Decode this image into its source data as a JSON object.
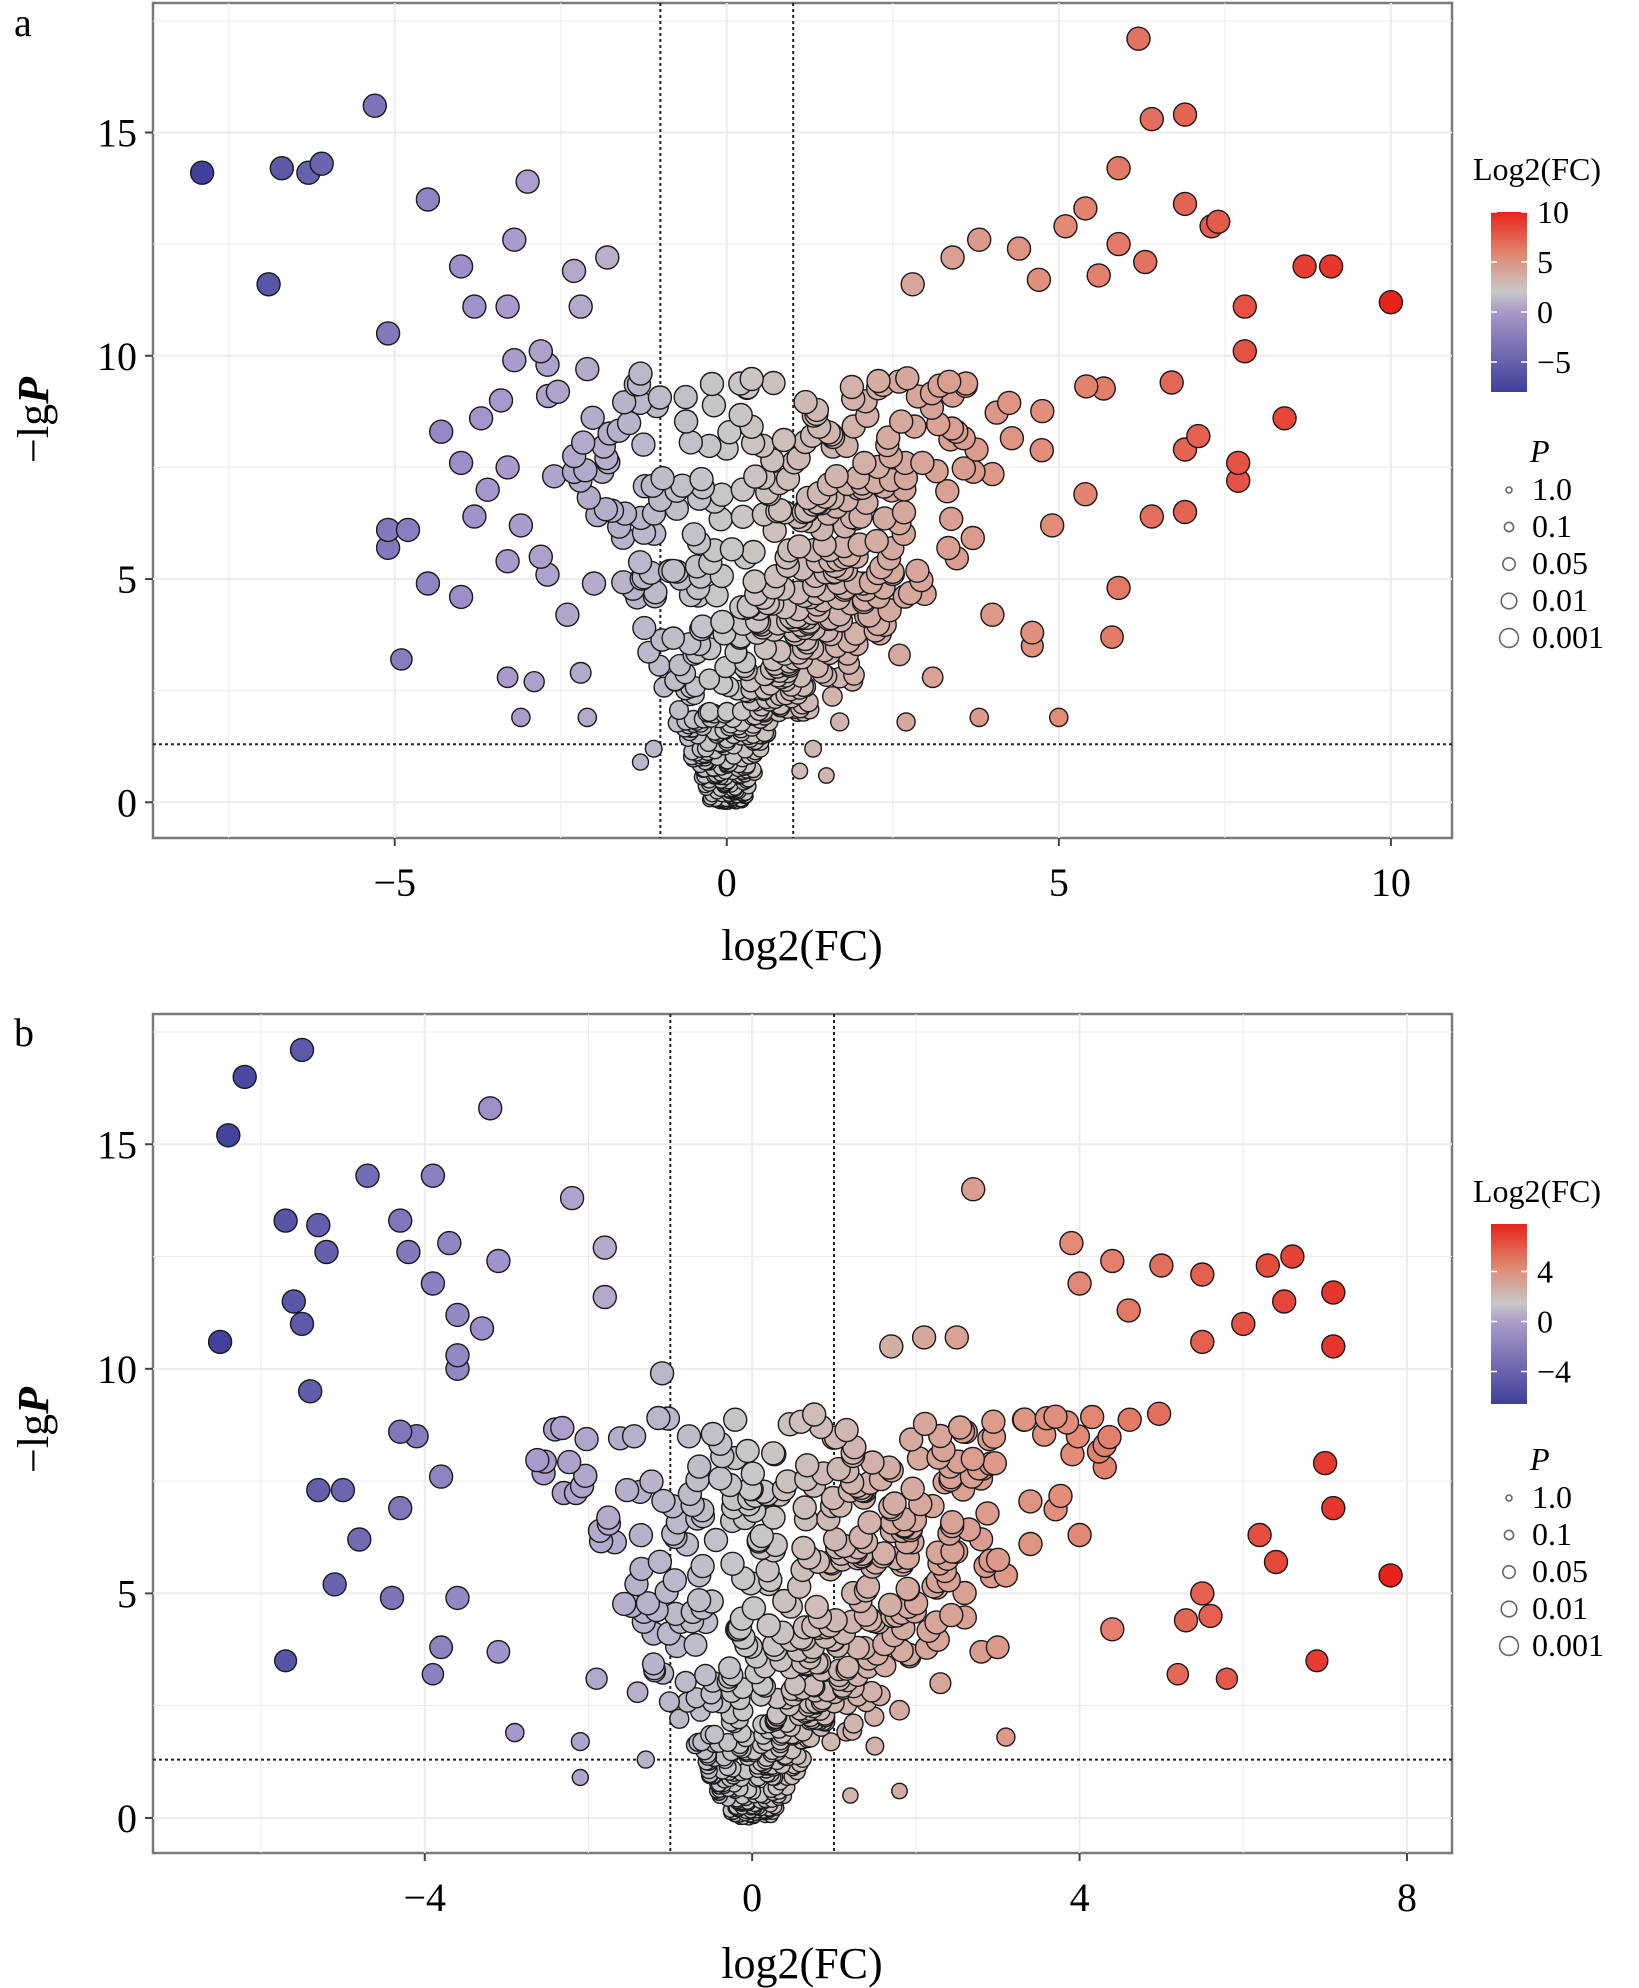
{
  "chart_data": [
    {
      "panel": "a",
      "type": "scatter",
      "title": "",
      "xlabel": "log2(FC)",
      "ylabel": "-lgP",
      "xlim": [
        -8.64,
        10.92
      ],
      "ylim": [
        -0.8,
        17.9
      ],
      "xticks": [
        -5,
        0,
        5,
        10
      ],
      "xtick_labels": [
        "−5",
        "0",
        "5",
        "10"
      ],
      "yticks": [
        0,
        5,
        10,
        15
      ],
      "ytick_labels": [
        "0",
        "5",
        "10",
        "15"
      ],
      "grid": true,
      "thresholds": {
        "x": [
          -1,
          1
        ],
        "y": 1.3
      },
      "color_scale": {
        "title": "Log2(FC)",
        "min": -8,
        "max": 10,
        "ticks": [
          10,
          5,
          0,
          -5
        ],
        "low": "#3f3f9a",
        "mid": "#c8c8c8",
        "high": "#e8231a"
      },
      "size_legend": {
        "title": "P",
        "labels": [
          "1.0",
          "0.1",
          "0.05",
          "0.01",
          "0.001"
        ]
      },
      "legend_position": "right",
      "outliers": [
        [
          -7.9,
          14.1
        ],
        [
          -6.7,
          14.2
        ],
        [
          -6.3,
          14.1
        ],
        [
          -6.1,
          14.3
        ],
        [
          -6.9,
          11.6
        ],
        [
          -5.3,
          15.6
        ],
        [
          -5.1,
          10.5
        ],
        [
          -4.5,
          13.5
        ],
        [
          -3.0,
          13.9
        ],
        [
          -2.8,
          10.1
        ],
        [
          -4.0,
          12.0
        ],
        [
          -3.2,
          12.6
        ],
        [
          -3.8,
          11.1
        ],
        [
          -3.3,
          11.1
        ],
        [
          -2.3,
          11.9
        ],
        [
          -2.2,
          11.1
        ],
        [
          -1.8,
          12.2
        ],
        [
          -1.3,
          9.6
        ],
        [
          -4.3,
          8.3
        ],
        [
          -3.7,
          8.6
        ],
        [
          -3.4,
          9.0
        ],
        [
          -3.2,
          9.9
        ],
        [
          -2.7,
          9.8
        ],
        [
          -2.1,
          9.7
        ],
        [
          -4.0,
          7.6
        ],
        [
          -3.3,
          7.5
        ],
        [
          -3.6,
          7.0
        ],
        [
          -2.6,
          7.3
        ],
        [
          -2.3,
          7.4
        ],
        [
          -5.1,
          6.1
        ],
        [
          -4.8,
          6.1
        ],
        [
          -5.1,
          5.7
        ],
        [
          -3.8,
          6.4
        ],
        [
          -3.1,
          6.2
        ],
        [
          -2.8,
          5.5
        ],
        [
          -4.5,
          4.9
        ],
        [
          -4.0,
          4.6
        ],
        [
          -3.3,
          5.4
        ],
        [
          -2.7,
          5.1
        ],
        [
          -2.4,
          4.2
        ],
        [
          -2.0,
          4.9
        ],
        [
          -4.9,
          3.2
        ],
        [
          -3.3,
          2.8
        ],
        [
          -2.9,
          2.7
        ],
        [
          -3.1,
          1.9
        ],
        [
          -2.2,
          2.9
        ],
        [
          -2.1,
          1.9
        ],
        [
          6.2,
          17.1
        ],
        [
          6.4,
          15.3
        ],
        [
          6.9,
          15.4
        ],
        [
          5.9,
          14.2
        ],
        [
          5.4,
          13.3
        ],
        [
          6.9,
          13.4
        ],
        [
          4.4,
          12.4
        ],
        [
          5.1,
          12.9
        ],
        [
          5.9,
          12.5
        ],
        [
          6.3,
          12.1
        ],
        [
          7.3,
          12.9
        ],
        [
          7.4,
          13.0
        ],
        [
          8.7,
          12.0
        ],
        [
          9.1,
          12.0
        ],
        [
          10.0,
          11.2
        ],
        [
          7.8,
          11.1
        ],
        [
          5.6,
          11.8
        ],
        [
          4.7,
          11.7
        ],
        [
          3.4,
          12.2
        ],
        [
          3.8,
          12.6
        ],
        [
          2.8,
          11.6
        ],
        [
          7.8,
          10.1
        ],
        [
          8.4,
          8.6
        ],
        [
          7.7,
          7.6
        ],
        [
          7.7,
          7.2
        ],
        [
          6.9,
          7.9
        ],
        [
          6.4,
          6.4
        ],
        [
          6.9,
          6.5
        ],
        [
          5.4,
          6.9
        ],
        [
          4.9,
          6.2
        ],
        [
          5.9,
          4.8
        ],
        [
          5.8,
          3.7
        ],
        [
          4.6,
          3.8
        ],
        [
          4.6,
          3.5
        ],
        [
          4.0,
          4.2
        ],
        [
          3.1,
          2.8
        ],
        [
          2.6,
          3.3
        ],
        [
          5.0,
          1.9
        ],
        [
          3.8,
          1.9
        ],
        [
          2.7,
          1.8
        ],
        [
          1.7,
          1.8
        ],
        [
          1.3,
          1.2
        ],
        [
          1.5,
          0.6
        ],
        [
          1.1,
          0.7
        ],
        [
          -1.3,
          0.9
        ],
        [
          -1.1,
          1.2
        ],
        [
          7.1,
          8.2
        ],
        [
          6.7,
          9.4
        ]
      ],
      "core_note": "dense V-shaped cluster of several hundred points centred at log2(FC)=0, -lgP 0–10"
    },
    {
      "panel": "b",
      "type": "scatter",
      "title": "",
      "xlabel": "log2(FC)",
      "ylabel": "-lgP",
      "xlim": [
        -7.32,
        8.55
      ],
      "ylim": [
        -0.78,
        17.9
      ],
      "xticks": [
        -4,
        0,
        4,
        8
      ],
      "xtick_labels": [
        "−4",
        "0",
        "4",
        "8"
      ],
      "yticks": [
        0,
        5,
        10,
        15
      ],
      "ytick_labels": [
        "0",
        "5",
        "10",
        "15"
      ],
      "grid": true,
      "thresholds": {
        "x": [
          -1,
          1
        ],
        "y": 1.3
      },
      "color_scale": {
        "title": "Log2(FC)",
        "min": -6.6,
        "max": 7.8,
        "ticks": [
          4,
          0,
          -4
        ],
        "low": "#3f3f9a",
        "mid": "#c8c8c8",
        "high": "#e8231a"
      },
      "size_legend": {
        "title": "P",
        "labels": [
          "1.0",
          "0.1",
          "0.05",
          "0.01",
          "0.001"
        ]
      },
      "legend_position": "right",
      "outliers": [
        [
          -6.5,
          10.6
        ],
        [
          -6.4,
          15.2
        ],
        [
          -6.2,
          16.5
        ],
        [
          -5.5,
          17.1
        ],
        [
          -5.7,
          13.3
        ],
        [
          -5.3,
          13.2
        ],
        [
          -5.2,
          12.6
        ],
        [
          -5.6,
          11.5
        ],
        [
          -5.5,
          11.0
        ],
        [
          -5.4,
          9.5
        ],
        [
          -5.3,
          7.3
        ],
        [
          -5.0,
          7.3
        ],
        [
          -5.7,
          3.5
        ],
        [
          -4.7,
          14.3
        ],
        [
          -4.3,
          13.3
        ],
        [
          -4.2,
          12.6
        ],
        [
          -3.9,
          14.3
        ],
        [
          -3.9,
          11.9
        ],
        [
          -3.7,
          12.8
        ],
        [
          -3.2,
          15.8
        ],
        [
          -3.1,
          12.4
        ],
        [
          -3.6,
          11.2
        ],
        [
          -3.3,
          10.9
        ],
        [
          -3.6,
          10.3
        ],
        [
          -3.6,
          10.0
        ],
        [
          -4.3,
          8.6
        ],
        [
          -4.1,
          8.5
        ],
        [
          -3.8,
          7.6
        ],
        [
          -4.3,
          6.9
        ],
        [
          -4.8,
          6.2
        ],
        [
          -5.1,
          5.2
        ],
        [
          -4.4,
          4.9
        ],
        [
          -3.6,
          4.9
        ],
        [
          -3.8,
          3.8
        ],
        [
          -3.1,
          3.7
        ],
        [
          -3.9,
          3.2
        ],
        [
          -2.2,
          13.8
        ],
        [
          -1.8,
          12.7
        ],
        [
          -1.8,
          11.6
        ],
        [
          -1.1,
          9.9
        ],
        [
          -2.9,
          1.9
        ],
        [
          -2.1,
          1.7
        ],
        [
          -2.1,
          0.9
        ],
        [
          -1.4,
          2.8
        ],
        [
          -1.3,
          1.3
        ],
        [
          -1.9,
          3.1
        ],
        [
          2.7,
          14.0
        ],
        [
          3.9,
          12.8
        ],
        [
          4.4,
          12.4
        ],
        [
          5.0,
          12.3
        ],
        [
          5.5,
          12.1
        ],
        [
          6.3,
          12.3
        ],
        [
          6.6,
          12.5
        ],
        [
          7.1,
          11.7
        ],
        [
          7.1,
          10.5
        ],
        [
          6.5,
          11.5
        ],
        [
          6.0,
          11.0
        ],
        [
          4.6,
          11.3
        ],
        [
          4.0,
          11.9
        ],
        [
          5.5,
          10.6
        ],
        [
          7.0,
          7.9
        ],
        [
          7.1,
          6.9
        ],
        [
          7.8,
          5.4
        ],
        [
          6.4,
          5.7
        ],
        [
          6.9,
          3.5
        ],
        [
          6.2,
          6.3
        ],
        [
          5.5,
          5.0
        ],
        [
          5.6,
          4.5
        ],
        [
          5.3,
          4.4
        ],
        [
          4.4,
          4.2
        ],
        [
          5.2,
          3.2
        ],
        [
          5.8,
          3.1
        ],
        [
          4.0,
          6.3
        ],
        [
          3.4,
          6.1
        ],
        [
          3.1,
          5.4
        ],
        [
          3.0,
          3.8
        ],
        [
          2.8,
          3.7
        ],
        [
          2.3,
          3.0
        ],
        [
          3.1,
          1.8
        ],
        [
          1.8,
          2.4
        ],
        [
          1.5,
          1.6
        ],
        [
          1.8,
          0.6
        ],
        [
          1.2,
          0.5
        ],
        [
          1.7,
          10.5
        ],
        [
          2.5,
          10.7
        ],
        [
          2.1,
          10.7
        ],
        [
          3.6,
          8.9
        ]
      ],
      "core_note": "dense V-shaped cluster of several hundred points centred at log2(FC)=0, -lgP 0–9"
    }
  ],
  "panels": {
    "a": {
      "label": "a"
    },
    "b": {
      "label": "b"
    }
  },
  "axis": {
    "xlabel": "log2(FC)",
    "ylabel_prefix": "−lg",
    "ylabel_italic": "P"
  },
  "legend": {
    "color_title": "Log2(FC)",
    "size_title": "P",
    "size_labels": [
      "1.0",
      "0.1",
      "0.05",
      "0.01",
      "0.001"
    ]
  }
}
